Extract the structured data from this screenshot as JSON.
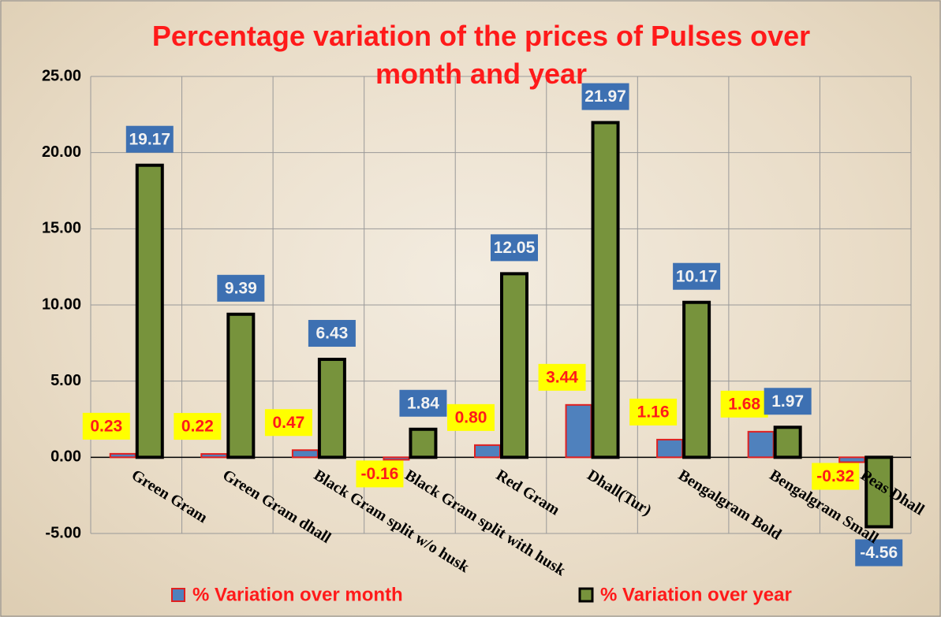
{
  "chart_data": {
    "type": "bar",
    "title": "Percentage variation of the prices of Pulses over month and year",
    "categories": [
      "Green Gram",
      "Green Gram dhall",
      "Black Gram split w/o husk",
      "Black Gram split with husk",
      "Red Gram",
      "Dhall(Tur)",
      "Bengalgram Bold",
      "Bengalgram Small",
      "Peas Dhall"
    ],
    "series": [
      {
        "name": "% Variation over month",
        "color": "#4f81bd",
        "values": [
          0.23,
          0.22,
          0.47,
          -0.16,
          0.8,
          3.44,
          1.16,
          1.68,
          -0.32
        ],
        "value_labels": [
          "0.23",
          "0.22",
          "0.47",
          "-0.16",
          "0.80",
          "3.44",
          "1.16",
          "1.68",
          "-0.32"
        ]
      },
      {
        "name": "% Variation over year",
        "color": "#77933c",
        "values": [
          19.17,
          9.39,
          6.43,
          1.84,
          12.05,
          21.97,
          10.17,
          1.97,
          -4.56
        ],
        "value_labels": [
          "19.17",
          "9.39",
          "6.43",
          "1.84",
          "12.05",
          "21.97",
          "10.17",
          "1.97",
          "-4.56"
        ]
      }
    ],
    "ylim": [
      -5,
      25
    ],
    "yticks": [
      {
        "value": -5,
        "label": "-5.00"
      },
      {
        "value": 0,
        "label": "0.00"
      },
      {
        "value": 5,
        "label": "5.00"
      },
      {
        "value": 10,
        "label": "10.00"
      },
      {
        "value": 15,
        "label": "15.00"
      },
      {
        "value": 20,
        "label": "20.00"
      },
      {
        "value": 25,
        "label": "25.00"
      }
    ],
    "grid": true,
    "legend": "bottom"
  }
}
